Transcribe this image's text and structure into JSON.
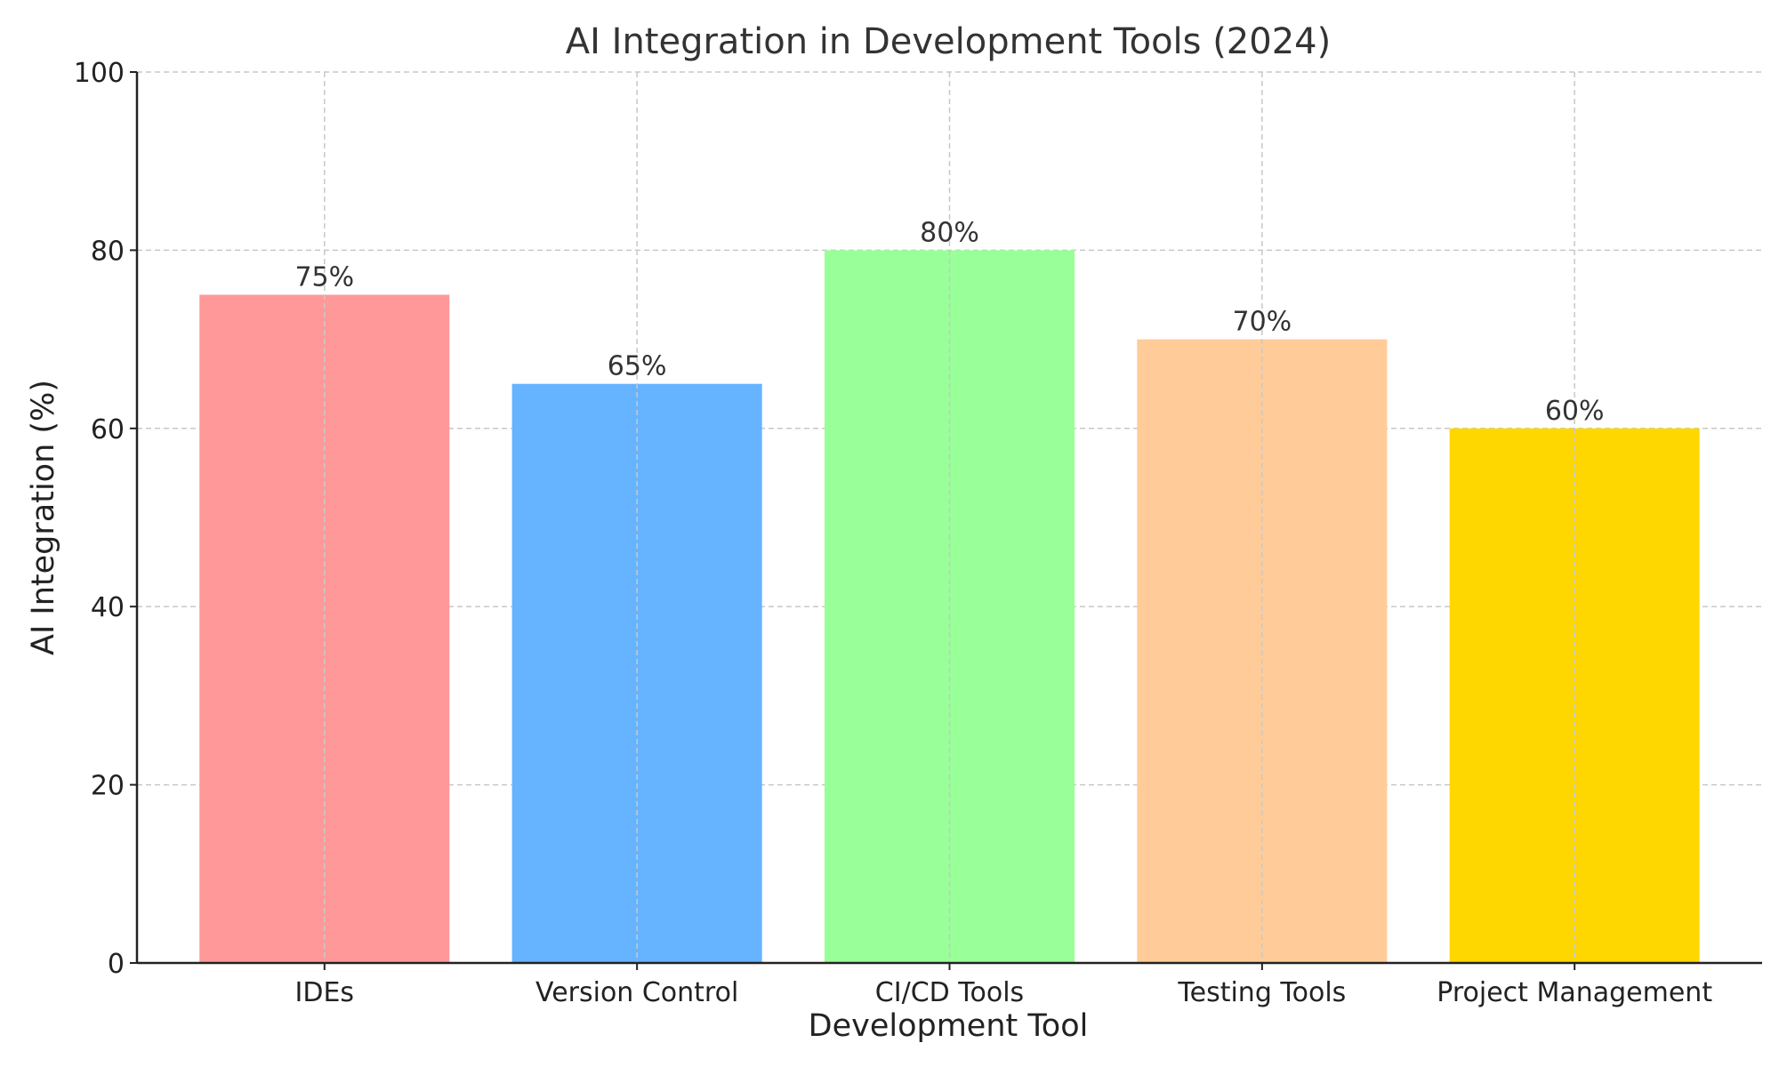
{
  "chart_data": {
    "type": "bar",
    "title": "AI Integration in Development Tools (2024)",
    "xlabel": "Development Tool",
    "ylabel": "AI Integration (%)",
    "categories": [
      "IDEs",
      "Version Control",
      "CI/CD Tools",
      "Testing Tools",
      "Project Management"
    ],
    "values": [
      75,
      65,
      80,
      70,
      60
    ],
    "data_labels": [
      "75%",
      "65%",
      "80%",
      "70%",
      "60%"
    ],
    "colors": [
      "#ff9999",
      "#66b3ff",
      "#99ff99",
      "#ffcc99",
      "#ffd700"
    ],
    "ylim": [
      0,
      100
    ],
    "yticks": [
      0,
      20,
      40,
      60,
      80,
      100
    ],
    "ytick_labels": [
      "0",
      "20",
      "40",
      "60",
      "80",
      "100"
    ],
    "grid": true,
    "legend": "none"
  }
}
